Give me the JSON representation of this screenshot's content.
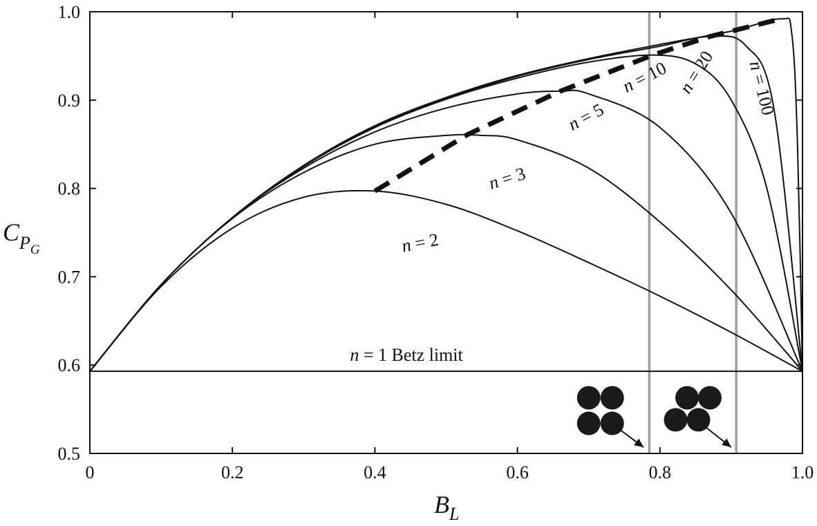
{
  "chart_data": {
    "type": "line",
    "x_axis": {
      "label_main": "B",
      "label_sub": "L",
      "range": [
        0,
        1.0
      ],
      "ticks": [
        0,
        0.2,
        0.4,
        0.6,
        0.8,
        1.0
      ],
      "tick_labels": [
        "0",
        "0.2",
        "0.4",
        "0.6",
        "0.8",
        "1.0"
      ]
    },
    "y_axis": {
      "label_main": "C",
      "label_sub": "P",
      "label_subsub": "G",
      "range": [
        0.5,
        1.0
      ],
      "ticks": [
        0.5,
        0.6,
        0.7,
        0.8,
        0.9,
        1.0
      ],
      "tick_labels": [
        "0.5",
        "0.6",
        "0.7",
        "0.8",
        "0.9",
        "1.0"
      ]
    },
    "grid": false,
    "series": [
      {
        "name": "n = 1 Betz limit",
        "n": 1,
        "x": [
          0,
          1.0
        ],
        "y": [
          0.593,
          0.593
        ]
      },
      {
        "name": "n = 2",
        "n": 2,
        "x": [
          0,
          0.1,
          0.2,
          0.3,
          0.4,
          0.5,
          0.6,
          0.7,
          0.8,
          0.9,
          1.0
        ],
        "y": [
          0.593,
          0.689,
          0.755,
          0.79,
          0.797,
          0.782,
          0.752,
          0.716,
          0.678,
          0.637,
          0.593
        ]
      },
      {
        "name": "n = 3",
        "n": 3,
        "x": [
          0,
          0.1,
          0.2,
          0.3,
          0.4,
          0.5,
          0.55,
          0.6,
          0.7,
          0.8,
          0.9,
          1.0
        ],
        "y": [
          0.593,
          0.691,
          0.766,
          0.818,
          0.85,
          0.86,
          0.86,
          0.855,
          0.823,
          0.762,
          0.685,
          0.593
        ]
      },
      {
        "name": "n = 5",
        "n": 5,
        "x": [
          0,
          0.1,
          0.2,
          0.3,
          0.4,
          0.5,
          0.6,
          0.66,
          0.7,
          0.8,
          0.9,
          1.0
        ],
        "y": [
          0.593,
          0.691,
          0.767,
          0.823,
          0.864,
          0.891,
          0.907,
          0.91,
          0.907,
          0.869,
          0.772,
          0.593
        ]
      },
      {
        "name": "n = 10",
        "n": 10,
        "x": [
          0,
          0.1,
          0.2,
          0.3,
          0.4,
          0.5,
          0.6,
          0.7,
          0.79,
          0.85,
          0.9,
          0.95,
          1.0
        ],
        "y": [
          0.593,
          0.691,
          0.767,
          0.825,
          0.869,
          0.901,
          0.925,
          0.943,
          0.951,
          0.941,
          0.9,
          0.8,
          0.593
        ]
      },
      {
        "name": "n = 20",
        "n": 20,
        "x": [
          0,
          0.1,
          0.2,
          0.3,
          0.4,
          0.5,
          0.6,
          0.7,
          0.8,
          0.87,
          0.92,
          0.96,
          1.0
        ],
        "y": [
          0.593,
          0.691,
          0.767,
          0.825,
          0.87,
          0.902,
          0.927,
          0.946,
          0.961,
          0.972,
          0.962,
          0.89,
          0.593
        ]
      },
      {
        "name": "n = 100",
        "n": 100,
        "x": [
          0,
          0.1,
          0.2,
          0.3,
          0.4,
          0.5,
          0.6,
          0.7,
          0.8,
          0.9,
          0.97,
          0.985,
          0.993,
          1.0
        ],
        "y": [
          0.593,
          0.691,
          0.767,
          0.826,
          0.871,
          0.903,
          0.928,
          0.947,
          0.963,
          0.978,
          0.992,
          0.975,
          0.85,
          0.593
        ]
      },
      {
        "name": "optimum",
        "style": "dashed",
        "x": [
          0.4,
          0.53,
          0.66,
          0.79,
          0.87,
          0.97
        ],
        "y": [
          0.797,
          0.861,
          0.91,
          0.951,
          0.972,
          0.992
        ]
      }
    ],
    "curve_labels": [
      {
        "n": "2",
        "text_n": "n",
        "text_rest": " = 2",
        "x": 0.465,
        "y": 0.732,
        "rotate": -11
      },
      {
        "n": "3",
        "text_n": "n",
        "text_rest": " = 3",
        "x": 0.588,
        "y": 0.805,
        "rotate": -17
      },
      {
        "n": "5",
        "text_n": "n",
        "text_rest": " = 5",
        "x": 0.7,
        "y": 0.875,
        "rotate": -28
      },
      {
        "n": "10",
        "text_n": "n",
        "text_rest": " = 10",
        "x": 0.782,
        "y": 0.92,
        "rotate": -27
      },
      {
        "n": "20",
        "text_n": "n",
        "text_rest": " = 20",
        "x": 0.858,
        "y": 0.928,
        "rotate": -58
      },
      {
        "n": "100",
        "text_n": "n",
        "text_rest": " = 100",
        "x": 0.935,
        "y": 0.912,
        "rotate": 76
      }
    ],
    "betz_label": {
      "n": "n",
      "rest": " = 1 Betz limit",
      "x": 0.365,
      "y": 0.605
    },
    "reference_lines": [
      {
        "name": "square packing",
        "x": 0.785,
        "color": "#9e9e9e"
      },
      {
        "name": "hexagonal packing",
        "x": 0.907,
        "color": "#9e9e9e"
      }
    ],
    "packing_glyphs": {
      "square": [
        [
          0.7,
          0.563
        ],
        [
          0.733,
          0.563
        ],
        [
          0.7,
          0.534
        ],
        [
          0.733,
          0.534
        ]
      ],
      "hexagonal": [
        [
          0.838,
          0.563
        ],
        [
          0.87,
          0.563
        ],
        [
          0.822,
          0.538
        ],
        [
          0.854,
          0.538
        ]
      ],
      "arrows": [
        [
          0.737,
          0.531,
          0.777,
          0.507
        ],
        [
          0.862,
          0.531,
          0.9,
          0.507
        ]
      ]
    },
    "colors": {
      "line": "#111111",
      "reference": "#9e9e9e",
      "background": "#ffffff"
    }
  }
}
